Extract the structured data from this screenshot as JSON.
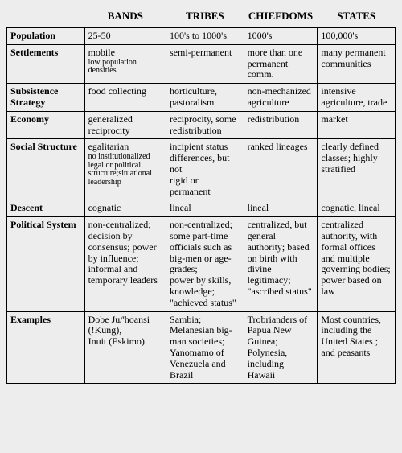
{
  "table": {
    "background_color": "#ededed",
    "border_color": "#000000",
    "font_family": "Times New Roman",
    "header_fontsize": 13,
    "body_fontsize": 12,
    "sub_fontsize": 10,
    "columns": [
      "BANDS",
      "TRIBES",
      "CHIEFDOMS",
      "STATES"
    ],
    "rows": [
      {
        "label": "Population",
        "cells": [
          "25-50",
          "100's to 1000's",
          "1000's",
          "100,000's"
        ]
      },
      {
        "label": "Settlements",
        "cells": [
          {
            "main": "mobile",
            "sub": "low population densities"
          },
          "semi-permanent",
          "more than one permanent comm.",
          "many permanent communities"
        ]
      },
      {
        "label": "Subsistence Strategy",
        "cells": [
          "food collecting",
          "horticulture, pastoralism",
          "non-mechanized agriculture",
          "intensive agriculture, trade"
        ]
      },
      {
        "label": "Economy",
        "cells": [
          "generalized reciprocity",
          "reciprocity, some redistribution",
          "redistribution",
          "market"
        ]
      },
      {
        "label": "Social Structure",
        "cells": [
          {
            "main": "egalitarian",
            "sub": "no institutionalized legal or political structure;situational leadership"
          },
          "incipient status differences, but not\nrigid or permanent",
          "ranked lineages",
          "clearly defined classes; highly stratified"
        ]
      },
      {
        "label": "Descent",
        "cells": [
          "cognatic",
          "lineal",
          "lineal",
          "cognatic, lineal"
        ]
      },
      {
        "label": "Political System",
        "cells": [
          "non-centralized; decision by consensus; power by influence; informal and temporary leaders",
          "non-centralized; some part-time officials such as big-men or age-grades;\npower by skills, knowledge; \"achieved status\"",
          "centralized, but general authority; based on birth with divine legitimacy; \"ascribed status\"",
          "centralized authority, with formal offices and multiple governing bodies;\npower based on law"
        ]
      },
      {
        "label": "Examples",
        "cells": [
          "Dobe Ju/'hoansi (!Kung),\nInuit (Eskimo)",
          "Sambia; Melanesian big-man societies; Yanomamo of Venezuela and Brazil",
          "Trobrianders of Papua New Guinea; Polynesia, including Hawaii",
          "Most countries, including the United States ; and peasants"
        ]
      }
    ]
  }
}
